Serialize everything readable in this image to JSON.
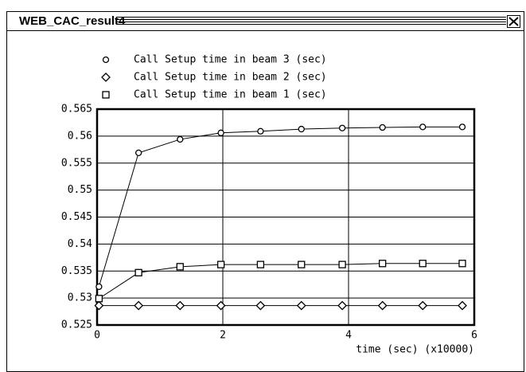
{
  "window": {
    "title": "WEB_CAC_result4"
  },
  "chart_data": {
    "type": "line",
    "x_label": "time (sec) (x10000)",
    "x": [
      0.03,
      0.66,
      1.32,
      1.97,
      2.6,
      3.25,
      3.9,
      4.54,
      5.18,
      5.81
    ],
    "series": [
      {
        "name": "Call Setup time in beam 3 (sec)",
        "marker": "circle",
        "color": "#000000",
        "values": [
          0.5321,
          0.5569,
          0.5594,
          0.5606,
          0.5609,
          0.5613,
          0.5615,
          0.5616,
          0.5617,
          0.5617
        ]
      },
      {
        "name": "Call Setup time in beam 2 (sec)",
        "marker": "diamond",
        "color": "#000000",
        "values": [
          0.5286,
          0.5286,
          0.5286,
          0.5286,
          0.5286,
          0.5286,
          0.5286,
          0.5286,
          0.5286,
          0.5286
        ]
      },
      {
        "name": "Call Setup time in beam 1 (sec)",
        "marker": "square",
        "color": "#000000",
        "values": [
          0.5299,
          0.5347,
          0.5358,
          0.5362,
          0.5362,
          0.5362,
          0.5362,
          0.5364,
          0.5364,
          0.5364
        ]
      }
    ],
    "xlim": [
      0,
      6
    ],
    "xticks": [
      0,
      2,
      4,
      6
    ],
    "ylim": [
      0.525,
      0.565
    ],
    "yticks": [
      0.525,
      0.53,
      0.535,
      0.54,
      0.545,
      0.55,
      0.555,
      0.56,
      0.565
    ],
    "grid": true
  }
}
